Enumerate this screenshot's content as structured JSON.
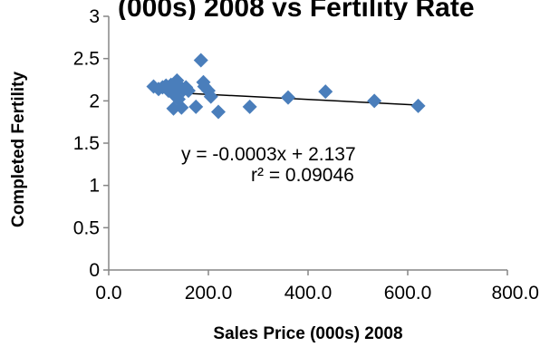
{
  "chart_data": {
    "type": "scatter",
    "title": "",
    "title_fragment": "(000s) 2008 vs Fertility Rate",
    "xlabel": "Sales Price (000s) 2008",
    "ylabel": "Completed Fertility",
    "xlim": [
      0,
      800
    ],
    "ylim": [
      0,
      3
    ],
    "x_ticks": [
      0,
      200,
      400,
      600,
      800
    ],
    "x_tick_labels": [
      "0.0",
      "200.0",
      "400.0",
      "600.0",
      "800.0"
    ],
    "y_ticks": [
      0,
      0.5,
      1,
      1.5,
      2,
      2.5,
      3
    ],
    "y_tick_labels": [
      "0",
      "0.5",
      "1",
      "1.5",
      "2",
      "2.5",
      "3"
    ],
    "grid": false,
    "legend": "none",
    "marker": "diamond",
    "marker_color": "#4a7ebb",
    "trendline_color": "#000000",
    "points": [
      {
        "x": 90,
        "y": 2.17
      },
      {
        "x": 100,
        "y": 2.14
      },
      {
        "x": 108,
        "y": 2.16
      },
      {
        "x": 115,
        "y": 2.18
      },
      {
        "x": 120,
        "y": 2.12
      },
      {
        "x": 125,
        "y": 2.19
      },
      {
        "x": 128,
        "y": 2.1
      },
      {
        "x": 130,
        "y": 1.91
      },
      {
        "x": 133,
        "y": 2.06
      },
      {
        "x": 137,
        "y": 2.24
      },
      {
        "x": 140,
        "y": 2.02
      },
      {
        "x": 143,
        "y": 2.17
      },
      {
        "x": 146,
        "y": 1.92
      },
      {
        "x": 150,
        "y": 2.13
      },
      {
        "x": 155,
        "y": 2.16
      },
      {
        "x": 160,
        "y": 2.12
      },
      {
        "x": 175,
        "y": 1.93
      },
      {
        "x": 185,
        "y": 2.48
      },
      {
        "x": 190,
        "y": 2.22
      },
      {
        "x": 192,
        "y": 2.17
      },
      {
        "x": 200,
        "y": 2.12
      },
      {
        "x": 205,
        "y": 2.05
      },
      {
        "x": 220,
        "y": 1.87
      },
      {
        "x": 283,
        "y": 1.93
      },
      {
        "x": 360,
        "y": 2.04
      },
      {
        "x": 435,
        "y": 2.11
      },
      {
        "x": 533,
        "y": 2.0
      },
      {
        "x": 621,
        "y": 1.94
      }
    ],
    "trendline": {
      "x_start": 90,
      "y_start": 2.11,
      "x_end": 621,
      "y_end": 1.95,
      "equation": "y = -0.0003x + 2.137",
      "r2_label": "r² = 0.09046"
    }
  }
}
